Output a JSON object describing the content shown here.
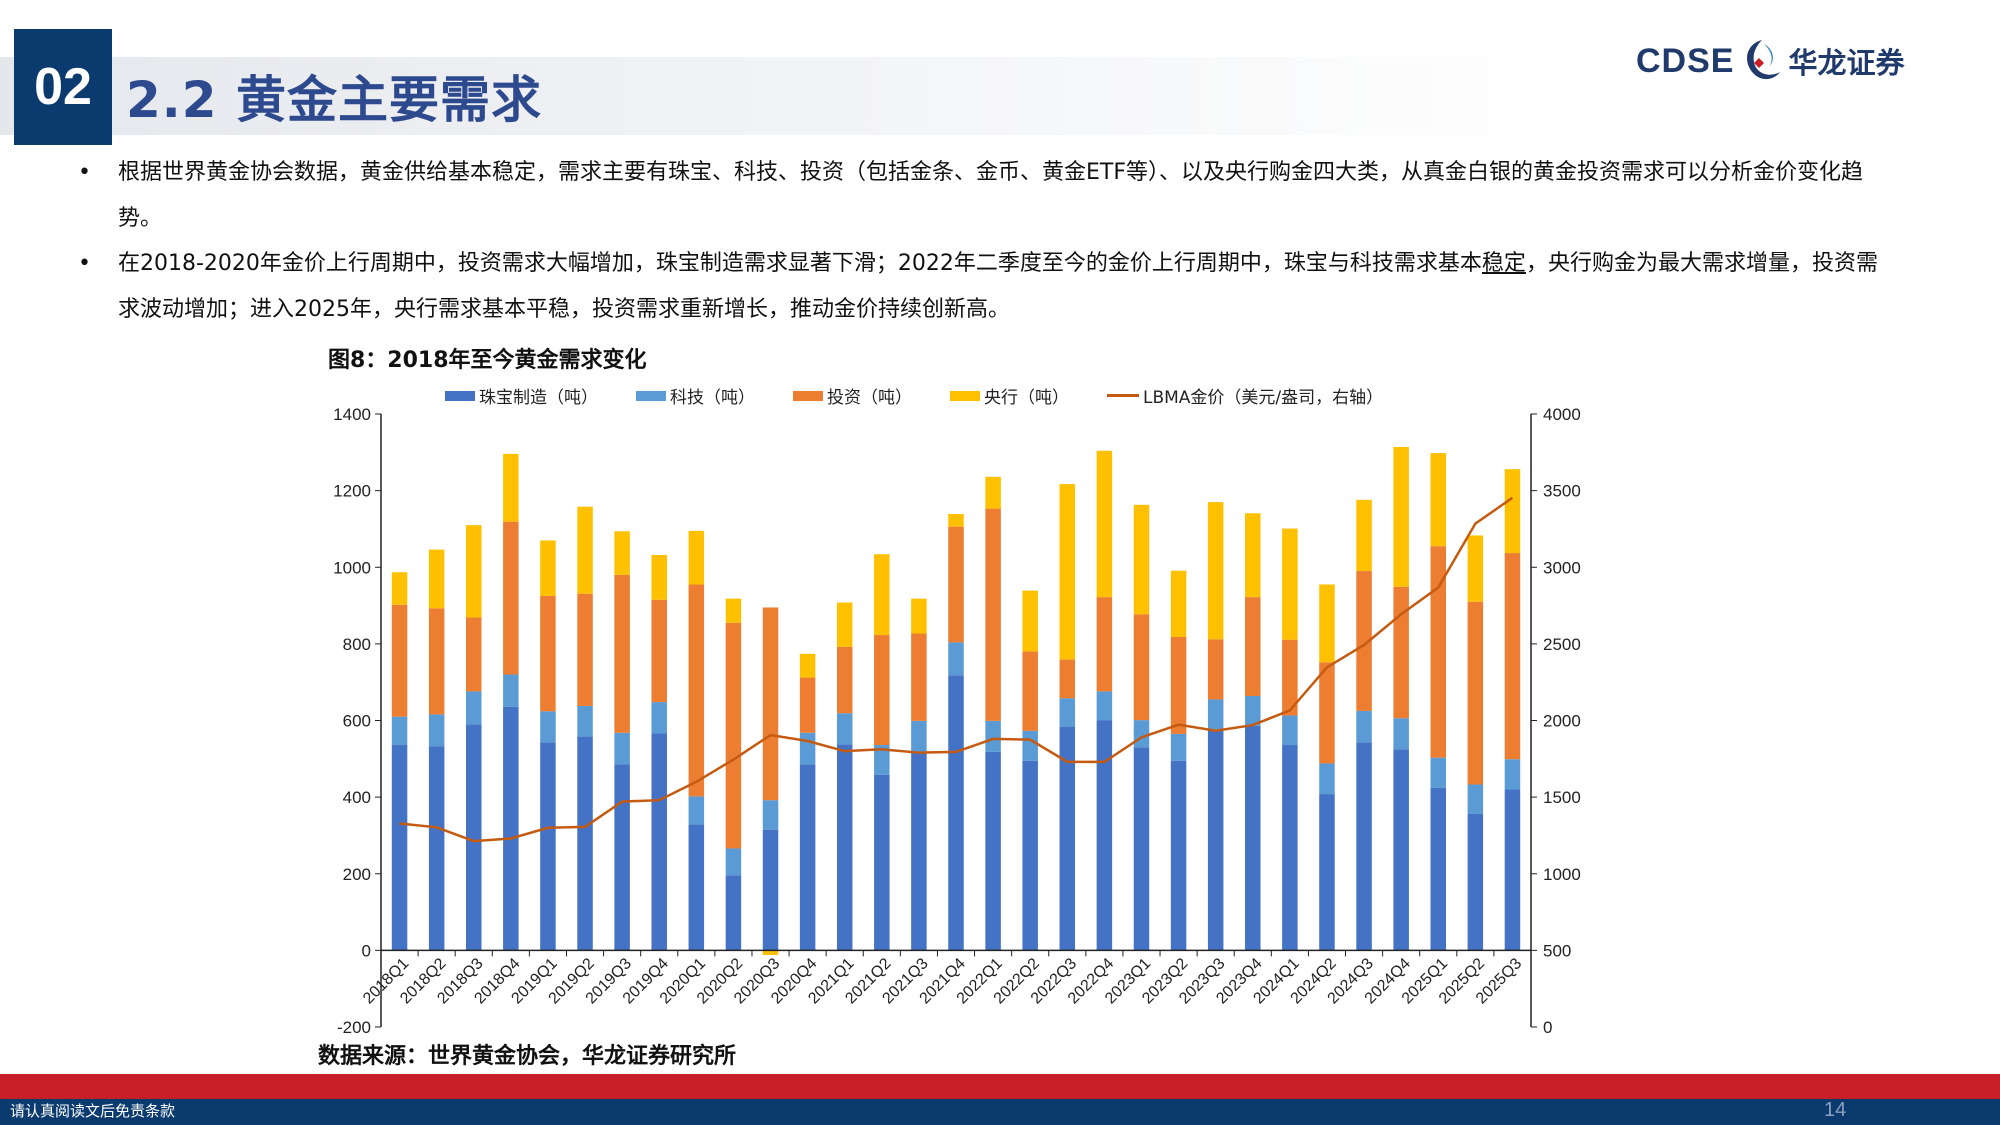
{
  "header": {
    "section_number": "02",
    "title": "2.2 黄金主要需求",
    "logo_en": "CDSE",
    "logo_cn": "华龙证券"
  },
  "bullets": [
    {
      "text": "根据世界黄金协会数据，黄金供给基本稳定，需求主要有珠宝、科技、投资（包括金条、金币、黄金ETF等）、以及央行购金四大类，从真金白银的黄金投资需求可以分析金价变化趋势。"
    },
    {
      "text_before": "在2018-2020年金价上行周期中，投资需求大幅增加，珠宝制造需求显著下滑；2022年二季度至今的金价上行周期中，珠宝与科技需求基本",
      "text_underlined": "稳定",
      "text_after": "，央行购金为最大需求增量，投资需求波动增加；进入2025年，央行需求基本平稳，投资需求重新增长，推动金价持续创新高。"
    }
  ],
  "chart_data": {
    "type": "bar",
    "stacked": true,
    "title": "图8：2018年至今黄金需求变化",
    "categories": [
      "2018Q1",
      "2018Q2",
      "2018Q3",
      "2018Q4",
      "2019Q1",
      "2019Q2",
      "2019Q3",
      "2019Q4",
      "2020Q1",
      "2020Q2",
      "2020Q3",
      "2020Q4",
      "2021Q1",
      "2021Q2",
      "2021Q3",
      "2021Q4",
      "2022Q1",
      "2022Q2",
      "2022Q3",
      "2022Q4",
      "2023Q1",
      "2023Q2",
      "2023Q3",
      "2023Q4",
      "2024Q1",
      "2024Q2",
      "2024Q3",
      "2024Q4",
      "2025Q1",
      "2025Q2",
      "2025Q3"
    ],
    "series": [
      {
        "name": "珠宝制造（吨）",
        "color": "#4472c4",
        "axis": "left",
        "values": [
          536,
          533,
          590,
          636,
          543,
          558,
          486,
          566,
          329,
          196,
          315,
          485,
          538,
          458,
          518,
          718,
          518,
          495,
          584,
          601,
          530,
          495,
          577,
          586,
          536,
          408,
          543,
          525,
          424,
          356,
          420
        ]
      },
      {
        "name": "科技（吨）",
        "color": "#5b9bd5",
        "axis": "left",
        "values": [
          74,
          83,
          86,
          84,
          81,
          80,
          82,
          82,
          73,
          70,
          77,
          83,
          81,
          78,
          81,
          86,
          81,
          78,
          74,
          75,
          71,
          70,
          78,
          78,
          77,
          80,
          82,
          81,
          79,
          77,
          79
        ]
      },
      {
        "name": "投资（吨）",
        "color": "#ed7d31",
        "axis": "left",
        "values": [
          292,
          277,
          193,
          399,
          301,
          293,
          412,
          267,
          553,
          589,
          503,
          144,
          173,
          287,
          228,
          302,
          554,
          207,
          101,
          246,
          276,
          253,
          157,
          258,
          198,
          264,
          365,
          343,
          552,
          477,
          538
        ]
      },
      {
        "name": "央行（吨）",
        "color": "#ffc000",
        "axis": "left",
        "values": [
          85,
          153,
          241,
          177,
          145,
          227,
          114,
          117,
          140,
          63,
          -12,
          62,
          116,
          211,
          91,
          33,
          83,
          159,
          458,
          382,
          286,
          173,
          358,
          219,
          290,
          203,
          186,
          365,
          243,
          173,
          219
        ]
      },
      {
        "name": "LBMA金价（美元/盎司，右轴）",
        "color": "#c55a11",
        "axis": "right",
        "type": "line",
        "values": [
          1328,
          1303,
          1213,
          1230,
          1300,
          1306,
          1471,
          1480,
          1600,
          1745,
          1905,
          1866,
          1800,
          1812,
          1790,
          1795,
          1880,
          1875,
          1730,
          1730,
          1890,
          1973,
          1933,
          1970,
          2066,
          2347,
          2493,
          2693,
          2868,
          3285,
          3453
        ]
      }
    ],
    "left_axis": {
      "ylim": [
        -200,
        1400
      ],
      "ticks": [
        -200,
        0,
        200,
        400,
        600,
        800,
        1000,
        1200,
        1400
      ]
    },
    "right_axis": {
      "ylim": [
        0,
        4000
      ],
      "ticks": [
        0,
        500,
        1000,
        1500,
        2000,
        2500,
        3000,
        3500,
        4000
      ]
    },
    "legend_placement": "top",
    "grid": false
  },
  "source": "数据来源：世界黄金协会，华龙证券研究所",
  "footer": {
    "disclaimer": "请认真阅读文后免责条款",
    "page_number": "14",
    "red_color": "#c81e28",
    "blue_color": "#0b3a6e"
  }
}
